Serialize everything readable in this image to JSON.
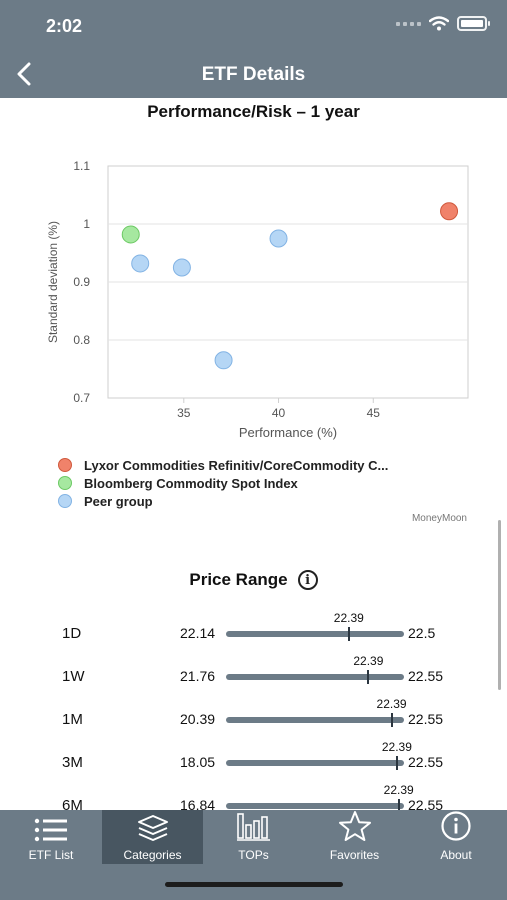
{
  "status": {
    "time": "2:02"
  },
  "nav": {
    "title": "ETF Details"
  },
  "chart_data": {
    "type": "scatter",
    "title": "Performance/Risk – 1 year",
    "xlabel": "Performance (%)",
    "ylabel": "Standard deviation (%)",
    "xlim": [
      31,
      50
    ],
    "ylim": [
      0.7,
      1.1
    ],
    "xticks": [
      35,
      40,
      45
    ],
    "yticks": [
      0.7,
      0.8,
      0.9,
      1,
      1.1
    ],
    "ytick_labels": [
      "0.7",
      "0.8",
      "0.9",
      "1",
      "1.1"
    ],
    "grid": true,
    "legend_position": "bottom",
    "series": [
      {
        "name": "Lyxor Commodities Refinitiv/CoreCommodity C...",
        "color": "#f0826a",
        "stroke": "#d0593d",
        "points": [
          {
            "x": 49.0,
            "y": 1.022
          }
        ]
      },
      {
        "name": "Bloomberg Commodity Spot Index",
        "color": "#a6e8a0",
        "stroke": "#6cc964",
        "points": [
          {
            "x": 32.2,
            "y": 0.982
          }
        ]
      },
      {
        "name": "Peer group",
        "color": "#b5d6f5",
        "stroke": "#82b3e4",
        "points": [
          {
            "x": 32.7,
            "y": 0.932
          },
          {
            "x": 34.9,
            "y": 0.925
          },
          {
            "x": 37.1,
            "y": 0.765
          },
          {
            "x": 40.0,
            "y": 0.975
          }
        ]
      }
    ],
    "credit": "MoneyMoon"
  },
  "price_range": {
    "title": "Price Range",
    "rows": [
      {
        "period": "1D",
        "low": "22.14",
        "high": "22.5",
        "current": "22.39",
        "position": 0.69
      },
      {
        "period": "1W",
        "low": "21.76",
        "high": "22.55",
        "current": "22.39",
        "position": 0.8
      },
      {
        "period": "1M",
        "low": "20.39",
        "high": "22.55",
        "current": "22.39",
        "position": 0.93
      },
      {
        "period": "3M",
        "low": "18.05",
        "high": "22.55",
        "current": "22.39",
        "position": 0.96
      },
      {
        "period": "6M",
        "low": "16.84",
        "high": "22.55",
        "current": "22.39",
        "position": 0.97
      }
    ]
  },
  "tabs": [
    {
      "label": "ETF List",
      "icon": "list-icon",
      "active": false
    },
    {
      "label": "Categories",
      "icon": "layers-icon",
      "active": true
    },
    {
      "label": "TOPs",
      "icon": "bar-chart-icon",
      "active": false
    },
    {
      "label": "Favorites",
      "icon": "star-icon",
      "active": false
    },
    {
      "label": "About",
      "icon": "info-icon",
      "active": false
    }
  ]
}
